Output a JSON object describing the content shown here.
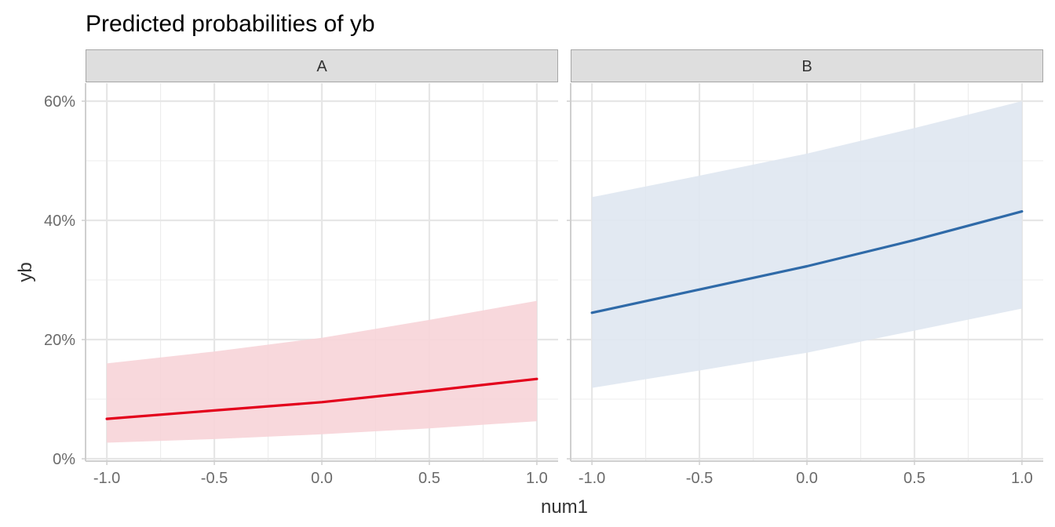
{
  "chart_data": {
    "type": "line",
    "title": "Predicted probabilities of yb",
    "xlabel": "num1",
    "ylabel": "yb",
    "xlim": [
      -1.0,
      1.0
    ],
    "ylim": [
      0,
      0.6
    ],
    "x_ticks": [
      -1.0,
      -0.5,
      0.0,
      0.5,
      1.0
    ],
    "x_tick_labels": [
      "-1.0",
      "-0.5",
      "0.0",
      "0.5",
      "1.0"
    ],
    "y_ticks": [
      0,
      0.2,
      0.4,
      0.6
    ],
    "y_tick_labels": [
      "0%",
      "20%",
      "40%",
      "60%"
    ],
    "grid": true,
    "legend": "none",
    "panels": [
      {
        "label": "A",
        "color": "#e3001b",
        "band_color": "#f7d4d8",
        "x": [
          -1.0,
          -0.5,
          0.0,
          0.5,
          1.0
        ],
        "y": [
          0.067,
          0.081,
          0.095,
          0.114,
          0.134
        ],
        "lower": [
          0.027,
          0.033,
          0.041,
          0.051,
          0.063
        ],
        "upper": [
          0.16,
          0.18,
          0.203,
          0.233,
          0.265
        ]
      },
      {
        "label": "B",
        "color": "#2f6aa8",
        "band_color": "#dfe7f1",
        "x": [
          -1.0,
          -0.5,
          0.0,
          0.5,
          1.0
        ],
        "y": [
          0.245,
          0.284,
          0.323,
          0.367,
          0.415
        ],
        "lower": [
          0.119,
          0.148,
          0.178,
          0.215,
          0.252
        ],
        "upper": [
          0.439,
          0.475,
          0.512,
          0.555,
          0.6
        ]
      }
    ]
  }
}
